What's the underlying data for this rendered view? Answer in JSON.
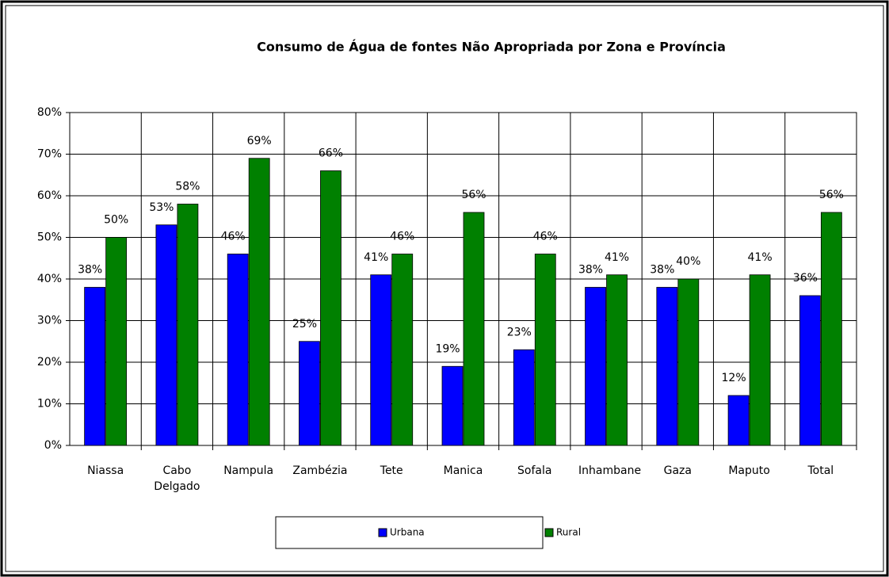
{
  "chart_data": {
    "type": "bar",
    "title": "Consumo de Água de fontes Não Apropriada por Zona e Província",
    "categories": [
      "Niassa",
      "Cabo Delgado",
      "Nampula",
      "Zambézia",
      "Tete",
      "Manica",
      "Sofala",
      "Inhambane",
      "Gaza",
      "Maputo",
      "Total"
    ],
    "series": [
      {
        "name": "Urbana",
        "color": "#0000ff",
        "values": [
          38,
          53,
          46,
          25,
          41,
          19,
          23,
          38,
          38,
          12,
          36
        ],
        "value_labels": [
          "38%",
          "53%",
          "46%",
          "25%",
          "41%",
          "19%",
          "23%",
          "38%",
          "38%",
          "12%",
          "36%"
        ]
      },
      {
        "name": "Rural",
        "color": "#008000",
        "values": [
          50,
          58,
          69,
          66,
          46,
          56,
          46,
          41,
          40,
          41,
          56
        ],
        "value_labels": [
          "50%",
          "58%",
          "69%",
          "66%",
          "46%",
          "56%",
          "46%",
          "41%",
          "40%",
          "41%",
          "56%"
        ]
      }
    ],
    "ylim": [
      0,
      80
    ],
    "yticks": [
      {
        "value": 0,
        "label": "0%"
      },
      {
        "value": 10,
        "label": "10%"
      },
      {
        "value": 20,
        "label": "20%"
      },
      {
        "value": 30,
        "label": "30%"
      },
      {
        "value": 40,
        "label": "40%"
      },
      {
        "value": 50,
        "label": "50%"
      },
      {
        "value": 60,
        "label": "60%"
      },
      {
        "value": 70,
        "label": "70%"
      },
      {
        "value": 80,
        "label": "80%"
      }
    ],
    "grid": true,
    "legend": "bottom"
  }
}
